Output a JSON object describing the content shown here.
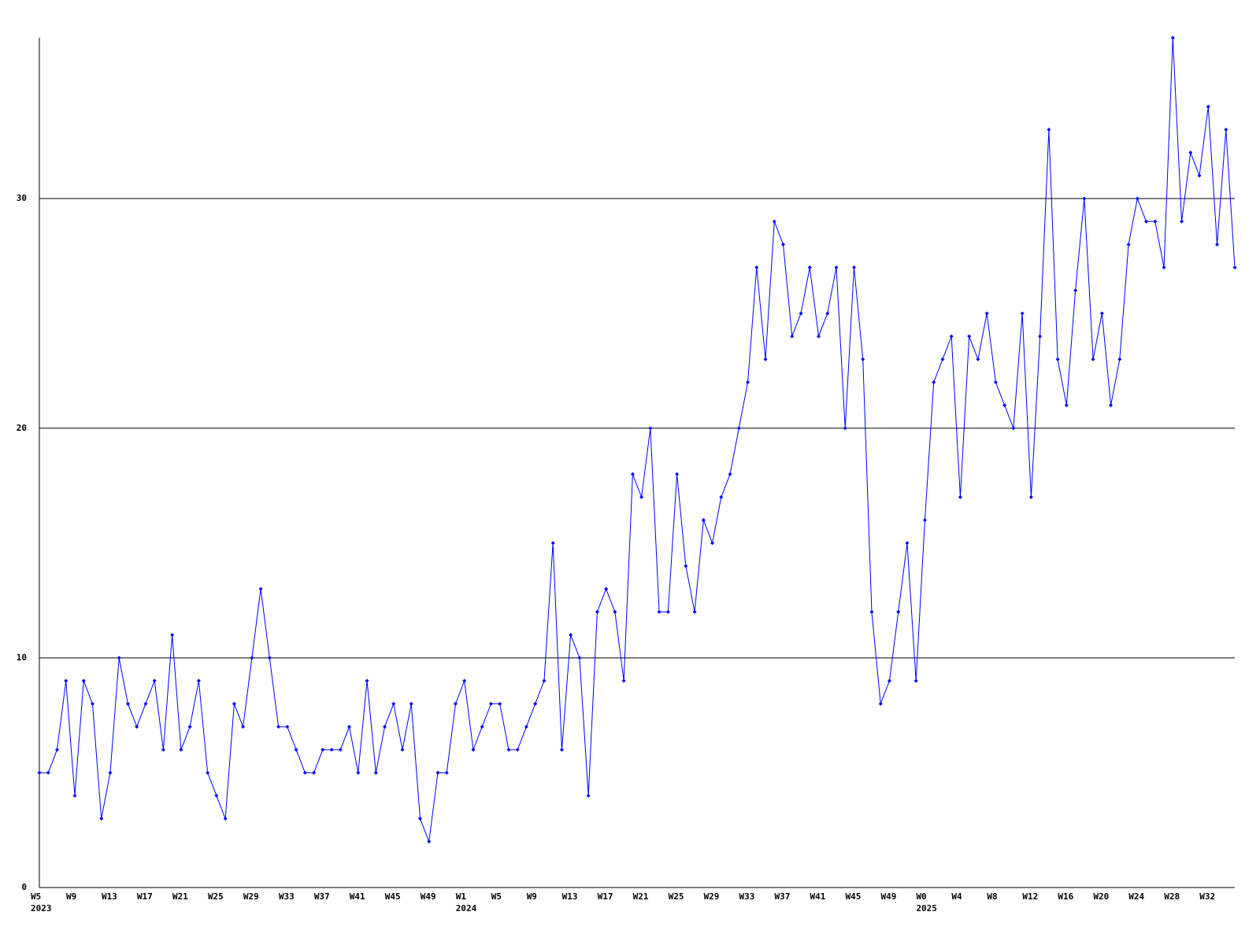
{
  "chart_data": {
    "type": "line",
    "categories": [
      "W5",
      null,
      null,
      null,
      "W9",
      null,
      null,
      null,
      "W13",
      null,
      null,
      null,
      "W17",
      null,
      null,
      null,
      "W21",
      null,
      null,
      null,
      "W25",
      null,
      null,
      null,
      "W29",
      null,
      null,
      null,
      "W33",
      null,
      null,
      null,
      "W37",
      null,
      null,
      null,
      "W41",
      null,
      null,
      null,
      "W45",
      null,
      null,
      null,
      "W49",
      null,
      null,
      null,
      "W1",
      null,
      null,
      null,
      "W5",
      null,
      null,
      null,
      "W9",
      null,
      null,
      null,
      "W13",
      null,
      null,
      null,
      "W17",
      null,
      null,
      null,
      "W21",
      null,
      null,
      null,
      "W25",
      null,
      null,
      null,
      "W29",
      null,
      null,
      null,
      "W33",
      null,
      null,
      null,
      "W37",
      null,
      null,
      null,
      "W41",
      null,
      null,
      null,
      "W45",
      null,
      null,
      null,
      "W49",
      null,
      null,
      null,
      "W0",
      null,
      null,
      null,
      "W4",
      null,
      null,
      null,
      "W8",
      null,
      null,
      null,
      "W12",
      null,
      null,
      null,
      "W16",
      null,
      null,
      null,
      "W20",
      null,
      null,
      null,
      "W24",
      null,
      null,
      null,
      "W28",
      null,
      null,
      null,
      "W32",
      null,
      null,
      null
    ],
    "x_year_labels": [
      "2023",
      null,
      null,
      null,
      null,
      null,
      null,
      null,
      null,
      null,
      null,
      null,
      null,
      null,
      null,
      null,
      null,
      null,
      null,
      null,
      null,
      null,
      null,
      null,
      null,
      null,
      null,
      null,
      null,
      null,
      null,
      null,
      null,
      null,
      null,
      null,
      null,
      null,
      null,
      null,
      null,
      null,
      null,
      null,
      null,
      null,
      null,
      null,
      "2024",
      null,
      null,
      null,
      null,
      null,
      null,
      null,
      null,
      null,
      null,
      null,
      null,
      null,
      null,
      null,
      null,
      null,
      null,
      null,
      null,
      null,
      null,
      null,
      null,
      null,
      null,
      null,
      null,
      null,
      null,
      null,
      null,
      null,
      null,
      null,
      null,
      null,
      null,
      null,
      null,
      null,
      null,
      null,
      null,
      null,
      null,
      null,
      null,
      null,
      null,
      null,
      "2025",
      null,
      null,
      null,
      null,
      null,
      null,
      null,
      null,
      null,
      null,
      null,
      null,
      null,
      null,
      null,
      null,
      null,
      null,
      null,
      null,
      null,
      null,
      null,
      null,
      null,
      null,
      null,
      null,
      null,
      null,
      null,
      null,
      null,
      null,
      null
    ],
    "series": [
      {
        "color": "#0000ff",
        "values": [
          5,
          5,
          6,
          9,
          4,
          9,
          8,
          3,
          5,
          10,
          8,
          7,
          8,
          9,
          6,
          11,
          6,
          7,
          9,
          5,
          4,
          3,
          8,
          7,
          10,
          13,
          10,
          7,
          7,
          6,
          5,
          5,
          6,
          6,
          6,
          7,
          5,
          9,
          5,
          7,
          8,
          6,
          8,
          3,
          2,
          5,
          5,
          8,
          9,
          6,
          7,
          8,
          8,
          6,
          6,
          7,
          8,
          9,
          15,
          6,
          11,
          10,
          4,
          12,
          13,
          12,
          9,
          18,
          17,
          20,
          12,
          12,
          18,
          14,
          12,
          16,
          15,
          17,
          18,
          20,
          22,
          27,
          23,
          29,
          28,
          24,
          25,
          27,
          24,
          25,
          27,
          20,
          27,
          23,
          12,
          8,
          9,
          12,
          15,
          9,
          16,
          22,
          23,
          24,
          17,
          24,
          23,
          25,
          22,
          21,
          20,
          25,
          17,
          24,
          33,
          23,
          21,
          26,
          30,
          23,
          25,
          21,
          23,
          28,
          30,
          29,
          29,
          27,
          37,
          29,
          32,
          31,
          34,
          28,
          33,
          27
        ]
      }
    ],
    "ylim": [
      0,
      37
    ],
    "yticks": [
      0,
      10,
      20,
      30
    ],
    "grid": true
  }
}
